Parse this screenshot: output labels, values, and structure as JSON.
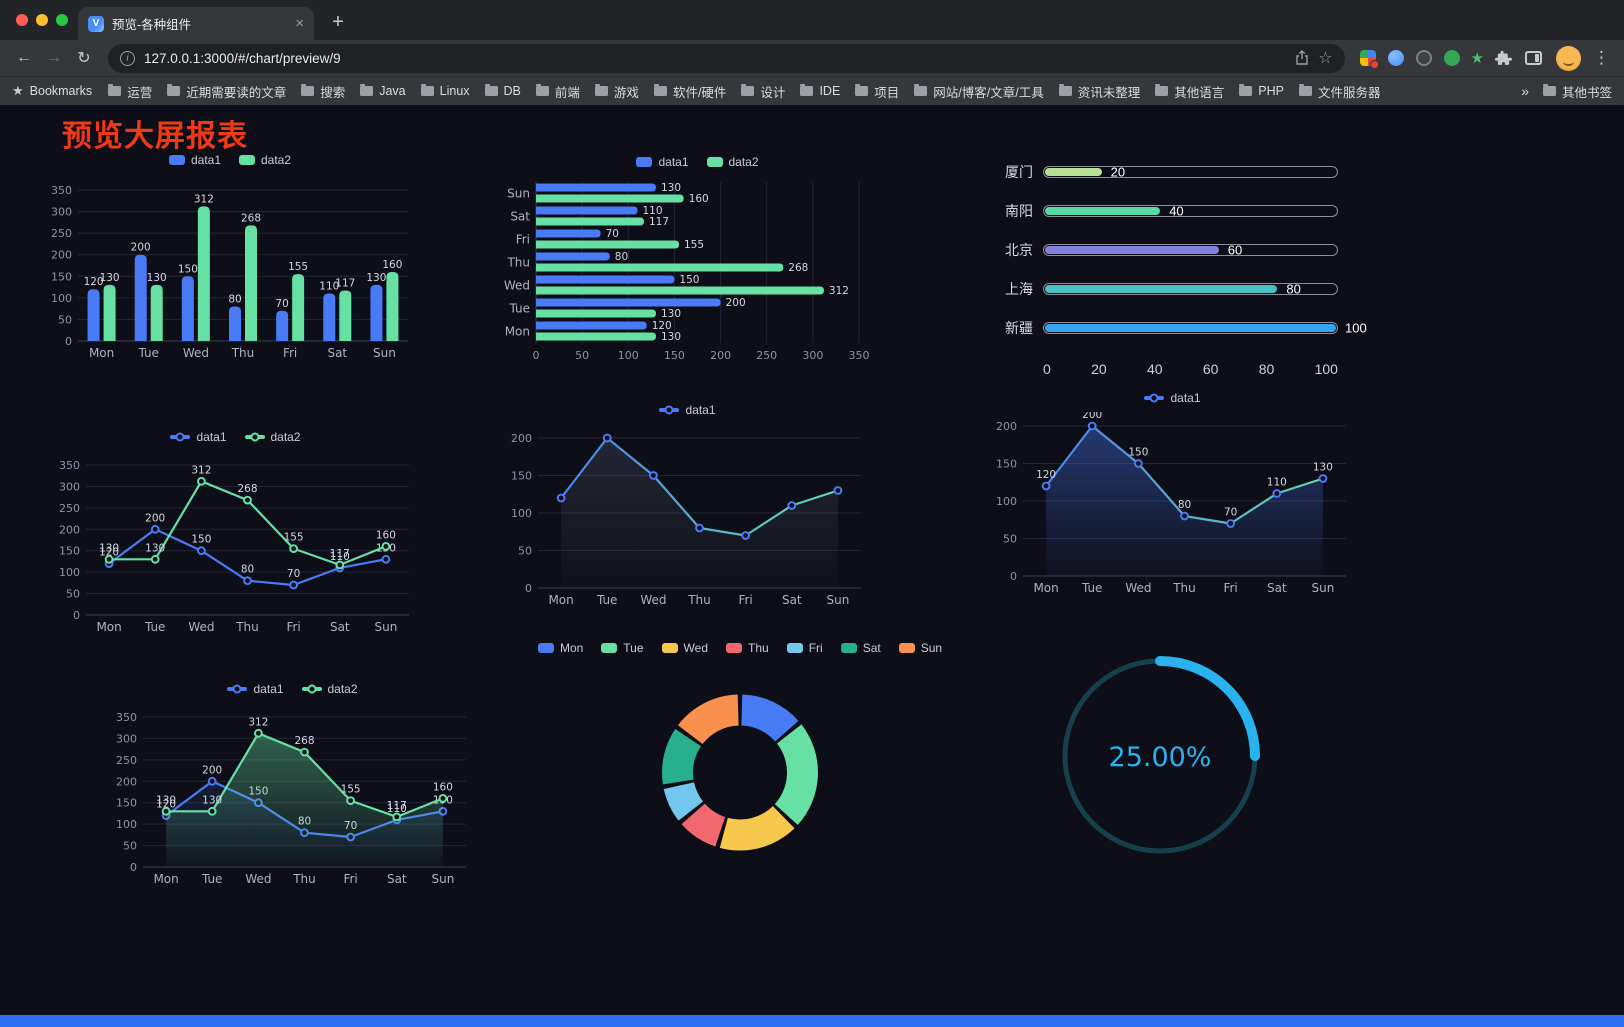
{
  "browser": {
    "tab_title": "预览-各种组件",
    "favicon_letter": "V",
    "url": "127.0.0.1:3000/#/chart/preview/9",
    "bookmarks": {
      "first_label": "Bookmarks",
      "items": [
        "运营",
        "近期需要读的文章",
        "搜索",
        "Java",
        "Linux",
        "DB",
        "前端",
        "游戏",
        "软件/硬件",
        "设计",
        "IDE",
        "项目",
        "网站/博客/文章/工具",
        "资讯未整理",
        "其他语言",
        "PHP",
        "文件服务器"
      ],
      "overflow_label": "»",
      "other_label": "其他书签"
    }
  },
  "page": {
    "title": "预览大屏报表",
    "title_color": "#f03a17",
    "background": "#0d0e17",
    "bottom_bar_color": "#2e6ff2"
  },
  "theme": {
    "series_blue": "#4a7bf7",
    "series_green": "#67e0a3",
    "gauge_blue": "#2ab2f0"
  },
  "chart_data": [
    {
      "type": "bar",
      "categories": [
        "Mon",
        "Tue",
        "Wed",
        "Thu",
        "Fri",
        "Sat",
        "Sun"
      ],
      "series": [
        {
          "name": "data1",
          "color": "#4a7bf7",
          "values": [
            120,
            200,
            150,
            80,
            70,
            110,
            130
          ]
        },
        {
          "name": "data2",
          "color": "#67e0a3",
          "values": [
            130,
            130,
            312,
            268,
            155,
            117,
            160
          ]
        }
      ],
      "ylim": [
        0,
        350
      ],
      "ytick": 50,
      "labels": true,
      "legend_position": "top"
    },
    {
      "type": "bar-horizontal",
      "categories": [
        "Mon",
        "Tue",
        "Wed",
        "Thu",
        "Fri",
        "Sat",
        "Sun"
      ],
      "series": [
        {
          "name": "data1",
          "color": "#4a7bf7",
          "values": [
            120,
            200,
            150,
            80,
            70,
            110,
            130
          ]
        },
        {
          "name": "data2",
          "color": "#67e0a3",
          "values": [
            130,
            130,
            312,
            268,
            155,
            117,
            160
          ]
        }
      ],
      "xlim": [
        0,
        350
      ],
      "xtick": 50,
      "labels": true,
      "flip": true,
      "legend_position": "top"
    },
    {
      "type": "progress",
      "items": [
        {
          "label": "厦门",
          "value": 20,
          "color": "#b7e296"
        },
        {
          "label": "南阳",
          "value": 40,
          "color": "#5ad8a6"
        },
        {
          "label": "北京",
          "value": 60,
          "color": "#8381dd"
        },
        {
          "label": "上海",
          "value": 80,
          "color": "#49c0c4"
        },
        {
          "label": "新疆",
          "value": 100,
          "color": "#35a5ee"
        }
      ],
      "xticks": [
        0,
        20,
        40,
        60,
        80,
        100
      ]
    },
    {
      "type": "line",
      "categories": [
        "Mon",
        "Tue",
        "Wed",
        "Thu",
        "Fri",
        "Sat",
        "Sun"
      ],
      "series": [
        {
          "name": "data1",
          "color": "#4a7bf7",
          "values": [
            120,
            200,
            150,
            80,
            70,
            110,
            130
          ]
        },
        {
          "name": "data2",
          "color": "#67e0a3",
          "values": [
            130,
            130,
            312,
            268,
            155,
            117,
            160
          ]
        }
      ],
      "ylim": [
        0,
        350
      ],
      "ytick": 50,
      "labels": true
    },
    {
      "type": "line",
      "categories": [
        "Mon",
        "Tue",
        "Wed",
        "Thu",
        "Fri",
        "Sat",
        "Sun"
      ],
      "series": [
        {
          "name": "data1",
          "color": "#4a7bf7",
          "gradient": [
            "#4a7bf7",
            "#67e0a3"
          ],
          "area": "faint",
          "values": [
            120,
            200,
            150,
            80,
            70,
            110,
            130
          ]
        }
      ],
      "ylim": [
        0,
        200
      ],
      "ytick": 50,
      "labels": false
    },
    {
      "type": "line",
      "categories": [
        "Mon",
        "Tue",
        "Wed",
        "Thu",
        "Fri",
        "Sat",
        "Sun"
      ],
      "series": [
        {
          "name": "data1",
          "color": "#4a7bf7",
          "gradient": [
            "#4a7bf7",
            "#67e0a3"
          ],
          "area": true,
          "area_opacity": 0.4,
          "values": [
            120,
            200,
            150,
            80,
            70,
            110,
            130
          ]
        }
      ],
      "ylim": [
        0,
        200
      ],
      "ytick": 50,
      "labels": true
    },
    {
      "type": "line",
      "categories": [
        "Mon",
        "Tue",
        "Wed",
        "Thu",
        "Fri",
        "Sat",
        "Sun"
      ],
      "series": [
        {
          "name": "data1",
          "color": "#4a7bf7",
          "area": true,
          "area_opacity": 0.22,
          "values": [
            120,
            200,
            150,
            80,
            70,
            110,
            130
          ]
        },
        {
          "name": "data2",
          "color": "#67e0a3",
          "area": true,
          "area_opacity": 0.45,
          "values": [
            130,
            130,
            312,
            268,
            155,
            117,
            160
          ]
        }
      ],
      "ylim": [
        0,
        350
      ],
      "ytick": 50,
      "labels": true
    },
    {
      "type": "pie",
      "categories": [
        "Mon",
        "Tue",
        "Wed",
        "Thu",
        "Fri",
        "Sat",
        "Sun"
      ],
      "values": [
        120,
        200,
        150,
        80,
        70,
        110,
        130
      ],
      "colors": [
        "#4a7bf7",
        "#67e0a3",
        "#f6c94d",
        "#f1686e",
        "#74c7ec",
        "#27b08b",
        "#f9904e"
      ],
      "legend_position": "top"
    },
    {
      "type": "gauge",
      "value": 25,
      "label": "25.00%",
      "color": "#2ab2f0"
    }
  ]
}
